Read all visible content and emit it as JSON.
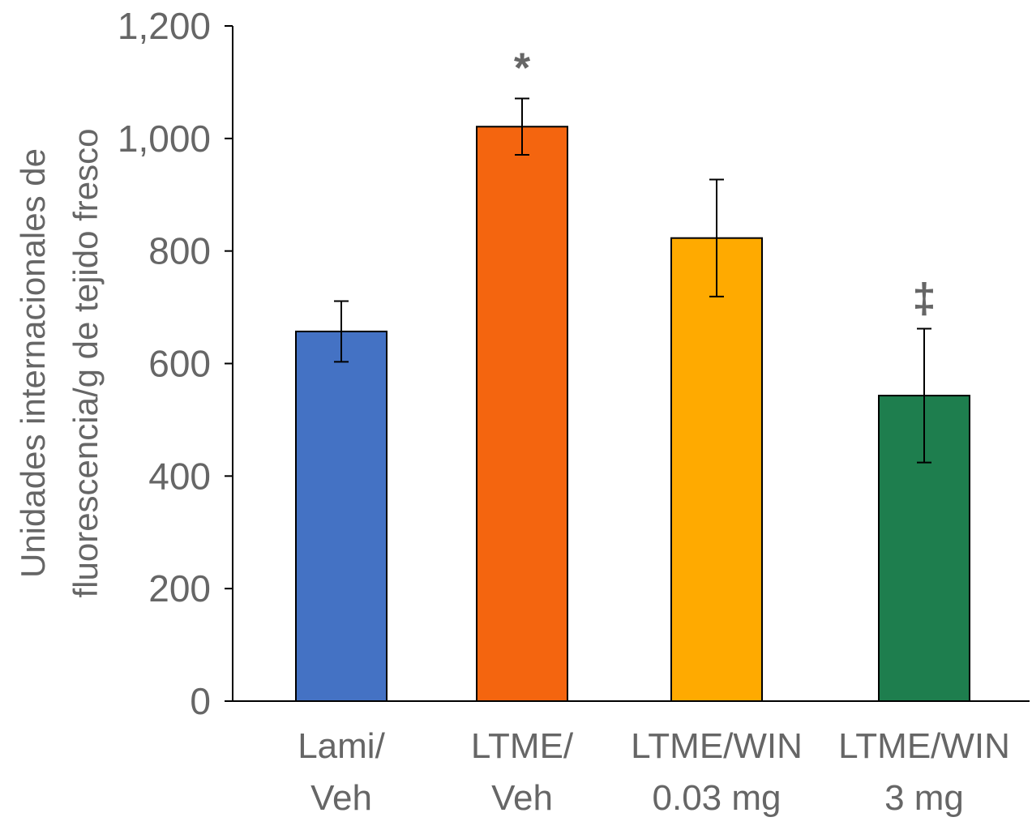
{
  "chart_data": {
    "type": "bar",
    "title": "",
    "xlabel": "",
    "ylabel": [
      "Unidades internacionales de",
      "fluorescencia/g de tejido fresco"
    ],
    "ylim": [
      0,
      1200
    ],
    "yticks": [
      0,
      200,
      400,
      600,
      800,
      1000,
      1200
    ],
    "ytick_labels": [
      "0",
      "200",
      "400",
      "600",
      "800",
      "1,000",
      "1,200"
    ],
    "categories": [
      [
        "Lami/",
        "Veh"
      ],
      [
        "LTME/",
        "Veh"
      ],
      [
        "LTME/WIN",
        "0.03 mg"
      ],
      [
        "LTME/WIN",
        "3 mg"
      ]
    ],
    "values": [
      657,
      1021,
      823,
      543
    ],
    "error": [
      54,
      50,
      104,
      119
    ],
    "colors": [
      "#4472c4",
      "#f4650f",
      "#ffaa00",
      "#1e7e4e"
    ],
    "annotations": [
      "",
      "*",
      "",
      "‡"
    ],
    "grid": false
  }
}
